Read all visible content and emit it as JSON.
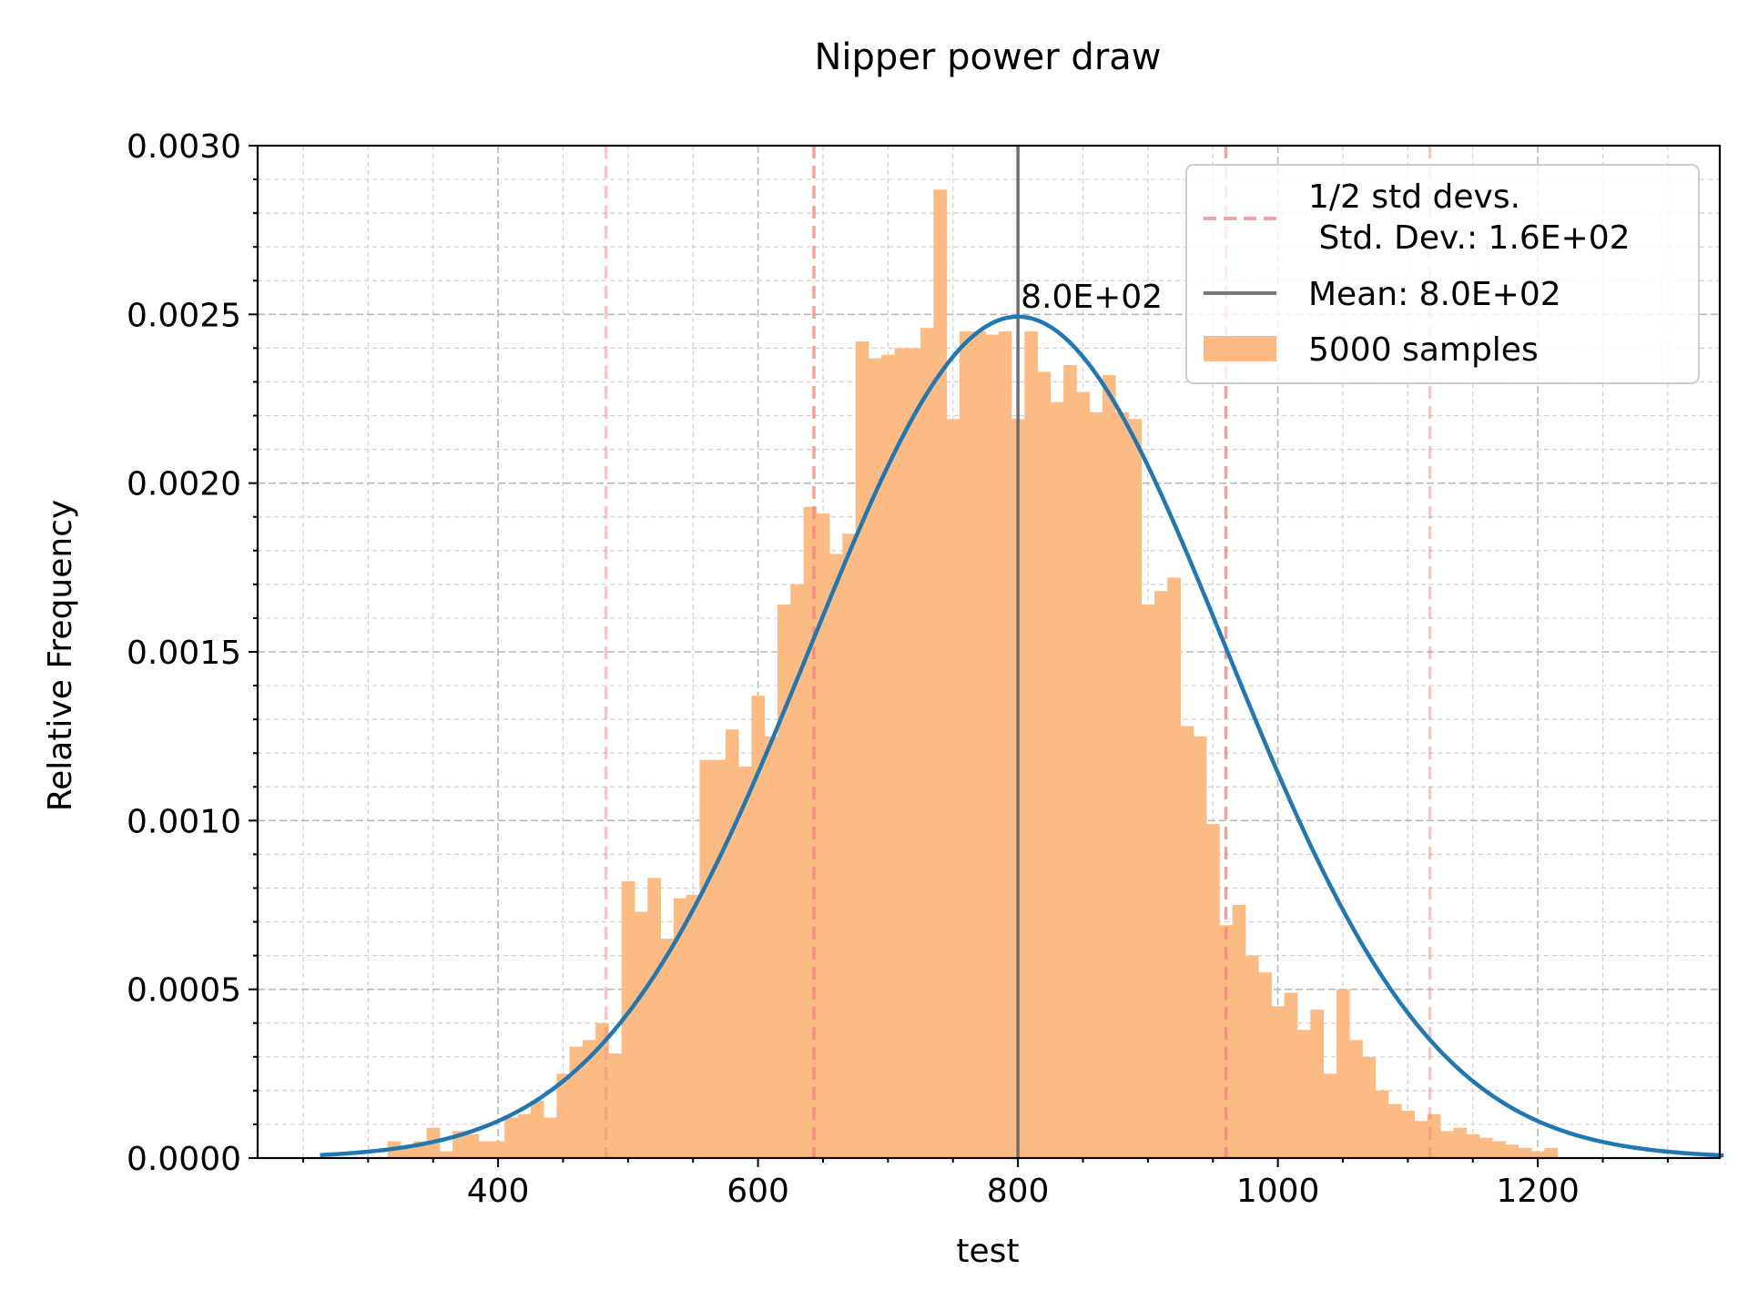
{
  "chart_data": {
    "type": "histogram",
    "title": "Nipper  power draw",
    "xlabel": "test",
    "ylabel": "Relative Frequency",
    "xlim": [
      215,
      1340
    ],
    "ylim": [
      0,
      0.003
    ],
    "x_ticks": [
      400,
      600,
      800,
      1000,
      1200
    ],
    "x_tick_labels": [
      "400",
      "600",
      "800",
      "1000",
      "1200"
    ],
    "x_minor_step": 50,
    "y_ticks": [
      0,
      0.0005,
      0.001,
      0.0015,
      0.002,
      0.0025,
      0.003
    ],
    "y_tick_labels": [
      "0.0000",
      "0.0005",
      "0.0010",
      "0.0015",
      "0.0020",
      "0.0025",
      "0.0030"
    ],
    "y_minor_step": 0.0001,
    "grid": true,
    "legend_position": "top-right",
    "histogram": {
      "name": "5000 samples",
      "color": "#fdbb84",
      "bin_start": 315,
      "bin_width": 10,
      "values": [
        5e-05,
        3e-05,
        5e-05,
        9e-05,
        2e-05,
        8e-05,
        7e-05,
        5e-05,
        5e-05,
        0.00012,
        0.00013,
        0.00017,
        0.00012,
        0.00025,
        0.00033,
        0.00035,
        0.0004,
        0.00031,
        0.00082,
        0.00073,
        0.00083,
        0.00065,
        0.00077,
        0.00078,
        0.00118,
        0.00118,
        0.00127,
        0.00116,
        0.00137,
        0.00125,
        0.00164,
        0.0017,
        0.00193,
        0.00191,
        0.00179,
        0.00185,
        0.00242,
        0.00237,
        0.00238,
        0.0024,
        0.0024,
        0.00246,
        0.00287,
        0.00219,
        0.00245,
        0.00245,
        0.00244,
        0.00245,
        0.00219,
        0.00245,
        0.00233,
        0.00224,
        0.00235,
        0.00227,
        0.00221,
        0.00232,
        0.00221,
        0.00219,
        0.00164,
        0.00168,
        0.00172,
        0.00128,
        0.00125,
        0.00099,
        0.00069,
        0.00075,
        0.0006,
        0.00055,
        0.00045,
        0.00049,
        0.00038,
        0.00044,
        0.00025,
        0.0005,
        0.00035,
        0.0003,
        0.0002,
        0.00016,
        0.00014,
        0.00011,
        0.00013,
        8e-05,
        9e-05,
        7e-05,
        6e-05,
        5e-05,
        4e-05,
        3e-05,
        2e-05,
        3e-05
      ]
    },
    "fit_curve": {
      "name": "normal fit",
      "color": "#1f77b4",
      "mean": 800,
      "std": 160,
      "x_range": [
        263,
        1345
      ]
    },
    "mean_line": {
      "name": "Mean: 8.0E+02",
      "value": 800,
      "color": "#6e6e6e",
      "annotation": "8.0E+02"
    },
    "std_lines": {
      "name": "1/2 std devs.\n Std. Dev.: 1.6E+02",
      "color": "#f08080",
      "values": [
        483,
        643,
        960,
        1117
      ]
    },
    "legend": [
      {
        "line1": "1/2 std devs.",
        "line2": " Std. Dev.: 1.6E+02",
        "color": "#f4a3a3",
        "style": "dashed"
      },
      {
        "line1": "Mean: 8.0E+02",
        "color": "#777777",
        "style": "solid"
      },
      {
        "line1": "5000 samples",
        "color": "#fdbb84",
        "style": "patch"
      }
    ]
  }
}
